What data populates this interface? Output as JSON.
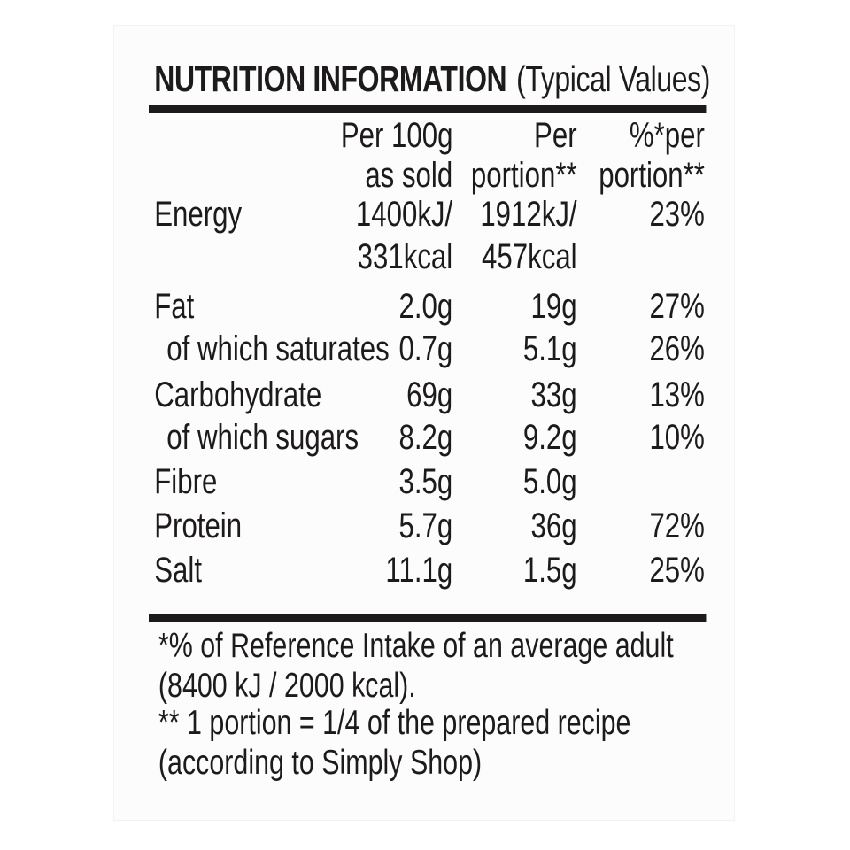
{
  "label": {
    "title": "NUTRITION INFORMATION",
    "title_suffix": "(Typical Values)",
    "header": {
      "col1_line1": "Per 100g",
      "col1_line2": "as sold",
      "col2_line1": "Per",
      "col2_line2": "portion**",
      "col3_line1": "%*per",
      "col3_line2": "portion**"
    },
    "rows": [
      {
        "label": "Energy",
        "per100g": "1400kJ/",
        "per100g_line2": "331kcal",
        "per_portion": "1912kJ/",
        "per_portion_line2": "457kcal",
        "pct_per_portion": "23%"
      },
      {
        "label": "Fat",
        "per100g": "2.0g",
        "per_portion": "19g",
        "pct_per_portion": "27%"
      },
      {
        "label": "of which saturates",
        "per100g": "0.7g",
        "per_portion": "5.1g",
        "pct_per_portion": "26%"
      },
      {
        "label": "Carbohydrate",
        "per100g": "69g",
        "per_portion": "33g",
        "pct_per_portion": "13%"
      },
      {
        "label": "of which sugars",
        "per100g": "8.2g",
        "per_portion": "9.2g",
        "pct_per_portion": "10%"
      },
      {
        "label": "Fibre",
        "per100g": "3.5g",
        "per_portion": "5.0g",
        "pct_per_portion": ""
      },
      {
        "label": "Protein",
        "per100g": "5.7g",
        "per_portion": "36g",
        "pct_per_portion": "72%"
      },
      {
        "label": "Salt",
        "per100g": "11.1g",
        "per_portion": "1.5g",
        "pct_per_portion": "25%"
      }
    ],
    "footnotes": {
      "reference_intake_line1": "*% of Reference Intake of an average adult",
      "reference_intake_line2": "(8400 kJ / 2000 kcal).",
      "portion_line1": "** 1 portion = 1/4 of the prepared recipe",
      "portion_line2": "(according to Simply Shop)"
    },
    "colors": {
      "text": "#1c1a1a",
      "card_background": "#fcfcfc",
      "page_background": "#ffffff"
    }
  }
}
